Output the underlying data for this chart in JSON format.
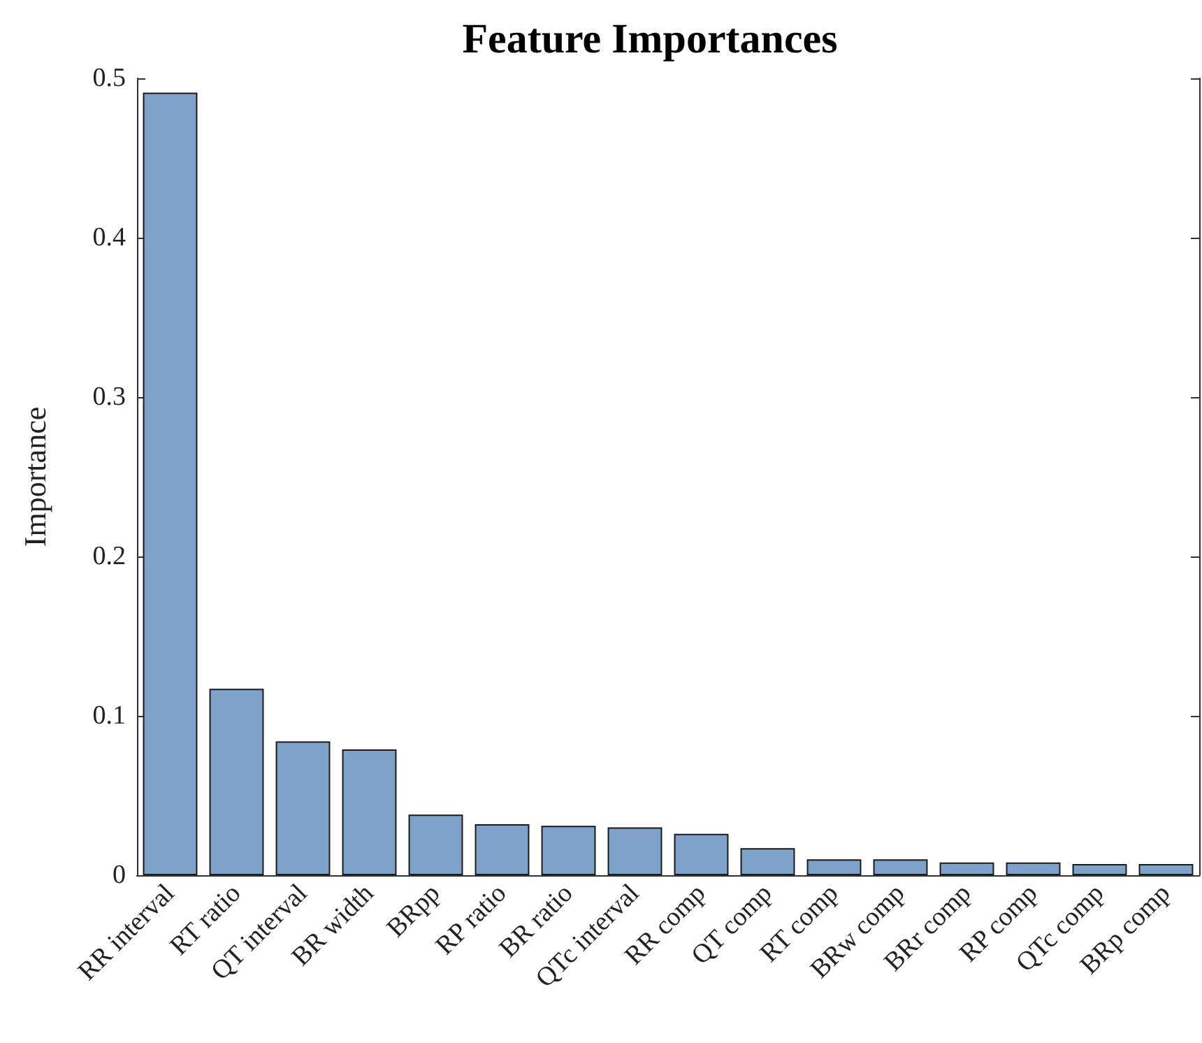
{
  "chart_data": {
    "type": "bar",
    "title": "Feature Importances",
    "ylabel": "Importance",
    "categories": [
      "RR interval",
      "RT ratio",
      "QT interval",
      "BR width",
      "BRpp",
      "RP ratio",
      "BR ratio",
      "QTc interval",
      "RR comp",
      "QT comp",
      "RT comp",
      "BRw comp",
      "BRr comp",
      "RP comp",
      "QTc comp",
      "BRp comp"
    ],
    "values": [
      0.491,
      0.117,
      0.084,
      0.079,
      0.038,
      0.032,
      0.031,
      0.03,
      0.026,
      0.017,
      0.01,
      0.01,
      0.008,
      0.008,
      0.007,
      0.007
    ],
    "color": "#7fa2cb",
    "ylim": [
      0,
      0.5
    ],
    "yticks": [
      0,
      0.1,
      0.2,
      0.3,
      0.4,
      0.5
    ],
    "grid": false
  }
}
